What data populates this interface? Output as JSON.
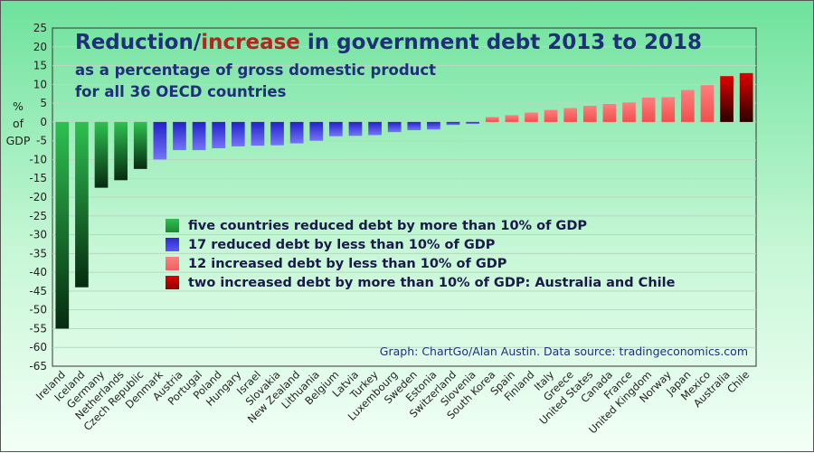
{
  "title": {
    "part1": "Reduction/",
    "part2": "increase",
    "part3": " in government debt 2013 to 2018"
  },
  "subtitle1": "as a percentage of gross domestic product",
  "subtitle2": "for all 36 OECD countries",
  "source": "Graph: ChartGo/Alan Austin. Data source: tradingeconomics.com",
  "ylabel": {
    "line1": "%",
    "line2": "of",
    "line3": "GDP"
  },
  "legend": [
    {
      "label": "five countries reduced debt by more than 10% of GDP",
      "color": "#22aa44"
    },
    {
      "label": "17 reduced debt by less than 10% of GDP",
      "color": "#3a3ae8"
    },
    {
      "label": "12 increased debt by less than 10% of GDP",
      "color": "#f07070"
    },
    {
      "label": "two increased debt by more than 10% of GDP: Australia and Chile",
      "color": "#cc0000"
    }
  ],
  "chart_data": {
    "type": "bar",
    "categories": [
      "Ireland",
      "Iceland",
      "Germany",
      "Netherlands",
      "Czech Republic",
      "Denmark",
      "Austria",
      "Portugal",
      "Poland",
      "Hungary",
      "Israel",
      "Slovakia",
      "New Zealand",
      "Lithuania",
      "Belgium",
      "Latvia",
      "Turkey",
      "Luxembourg",
      "Sweden",
      "Estonia",
      "Switzerland",
      "Slovenia",
      "South Korea",
      "Spain",
      "Finland",
      "Italy",
      "Greece",
      "United States",
      "Canada",
      "France",
      "United Kingdom",
      "Norway",
      "Japan",
      "Mexico",
      "Australia",
      "Chile"
    ],
    "values": [
      -55,
      -44,
      -17.5,
      -15.5,
      -12.5,
      -10,
      -7.5,
      -7.5,
      -7,
      -6.5,
      -6.3,
      -6.2,
      -5.7,
      -5,
      -3.8,
      -3.7,
      -3.5,
      -2.7,
      -2.2,
      -2,
      -0.8,
      -0.5,
      1.3,
      1.8,
      2.5,
      3.2,
      3.7,
      4.3,
      4.8,
      5.2,
      6.5,
      6.6,
      8.5,
      9.8,
      12.2,
      13
    ],
    "group_colors": {
      "strong_reduce": "green",
      "reduce": "blue",
      "increase": "salmon",
      "strong_increase": "red"
    },
    "groups": [
      "strong_reduce",
      "strong_reduce",
      "strong_reduce",
      "strong_reduce",
      "strong_reduce",
      "reduce",
      "reduce",
      "reduce",
      "reduce",
      "reduce",
      "reduce",
      "reduce",
      "reduce",
      "reduce",
      "reduce",
      "reduce",
      "reduce",
      "reduce",
      "reduce",
      "reduce",
      "reduce",
      "reduce",
      "increase",
      "increase",
      "increase",
      "increase",
      "increase",
      "increase",
      "increase",
      "increase",
      "increase",
      "increase",
      "increase",
      "increase",
      "strong_increase",
      "strong_increase"
    ],
    "y_ticks": [
      25,
      20,
      15,
      10,
      5,
      0,
      -5,
      -10,
      -15,
      -20,
      -25,
      -30,
      -35,
      -40,
      -45,
      -50,
      -55,
      -60,
      -65
    ],
    "ylim": [
      -65,
      25
    ],
    "ylabel": "% of GDP",
    "grid": true
  }
}
